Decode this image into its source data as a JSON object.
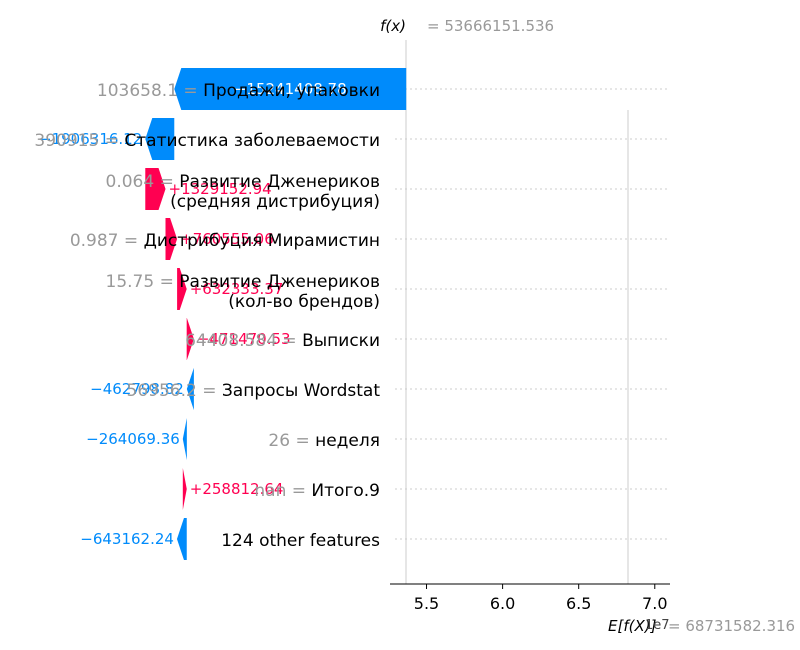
{
  "chart_data": {
    "type": "waterfall",
    "fx_label": "f(x)",
    "fx_value": "= 53666151.536",
    "ex_label": "E[f(X)]",
    "ex_value": "= 68731582.316",
    "axis_offset": "1e7",
    "xlim": [
      5.26,
      7.1
    ],
    "xticks": [
      "5.5",
      "6.0",
      "6.5",
      "7.0"
    ],
    "xtick_values": [
      5.5,
      6.0,
      6.5,
      7.0
    ],
    "fx": 5.3666151536,
    "base": 6.8731582316,
    "features": [
      {
        "value": "103658.1 =",
        "name": "Продажи, упаковки",
        "name2": "",
        "contribution": -15241408.78,
        "label": "−15241408.78"
      },
      {
        "value": "390915 =",
        "name": "Статистика заболеваемости",
        "name2": "",
        "contribution": -1906316.12,
        "label": "−1906316.12"
      },
      {
        "value": "0.064 =",
        "name": "Развитие Дженериков",
        "name2": "(средняя дистрибуция)",
        "contribution": 1329152.94,
        "label": "+1329152.94"
      },
      {
        "value": "0.987 =",
        "name": "Дистрибуция Мирамистин",
        "name2": "",
        "contribution": 760555.06,
        "label": "+760555.06"
      },
      {
        "value": "15.75 =",
        "name": "Развитие Дженериков",
        "name2": "(кол-во брендов)",
        "contribution": 632333.37,
        "label": "+632333.37"
      },
      {
        "value": "64408.584 =",
        "name": "Выписки",
        "name2": "",
        "contribution": 471470.53,
        "label": "+471470.53"
      },
      {
        "value": "56956.2 =",
        "name": "Запросы Wordstat",
        "name2": "",
        "contribution": -462798.82,
        "label": "−462798.82"
      },
      {
        "value": "26 =",
        "name": "неделя",
        "name2": "",
        "contribution": -264069.36,
        "label": "−264069.36"
      },
      {
        "value": "nan =",
        "name": "Итого.9",
        "name2": "",
        "contribution": 258812.64,
        "label": "+258812.64"
      },
      {
        "value": "",
        "name": "124 other features",
        "name2": "",
        "contribution": -643162.24,
        "label": "−643162.24"
      }
    ],
    "colors": {
      "positive": "#ff0051",
      "negative": "#008bfb",
      "value_text": "#999999",
      "label_text": "#000000",
      "grid": "#cccccc"
    }
  }
}
